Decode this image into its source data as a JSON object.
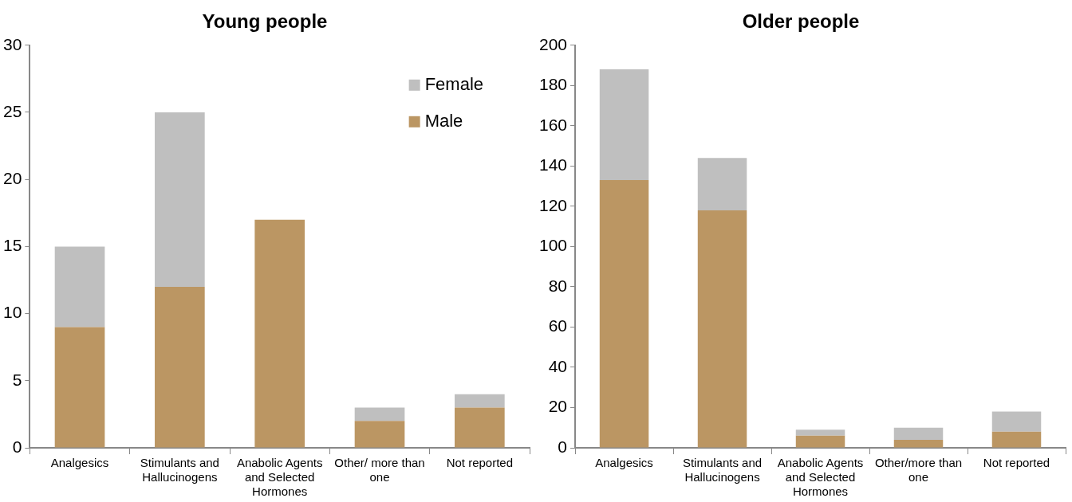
{
  "chart_data": [
    {
      "type": "bar",
      "title": "Young people",
      "stacked": true,
      "legend": "top right",
      "grid": false,
      "categories": [
        "Analgesics",
        "Stimulants and Hallucinogens",
        "Anabolic Agents and Selected Hormones",
        "Other/ more than one",
        "Not reported"
      ],
      "series": [
        {
          "name": "Male",
          "color": "#bb9663",
          "values": [
            9,
            12,
            17,
            2,
            3
          ]
        },
        {
          "name": "Female",
          "color": "#bfbfbf",
          "values": [
            6,
            13,
            0,
            1,
            1
          ]
        }
      ],
      "ylim": [
        0,
        30
      ],
      "yticks": [
        0,
        5,
        10,
        15,
        20,
        25,
        30
      ]
    },
    {
      "type": "bar",
      "title": "Older people",
      "stacked": true,
      "grid": false,
      "categories": [
        "Analgesics",
        "Stimulants and Hallucinogens",
        "Anabolic Agents and Selected Hormones",
        "Other/more than one",
        "Not reported"
      ],
      "series": [
        {
          "color": "#bb9663",
          "values": [
            133,
            118,
            6,
            4,
            8
          ]
        },
        {
          "color": "#bfbfbf",
          "values": [
            55,
            26,
            3,
            6,
            10
          ]
        }
      ],
      "ylim": [
        0,
        200
      ],
      "yticks": [
        0,
        20,
        40,
        60,
        80,
        100,
        120,
        140,
        160,
        180,
        200
      ]
    }
  ]
}
